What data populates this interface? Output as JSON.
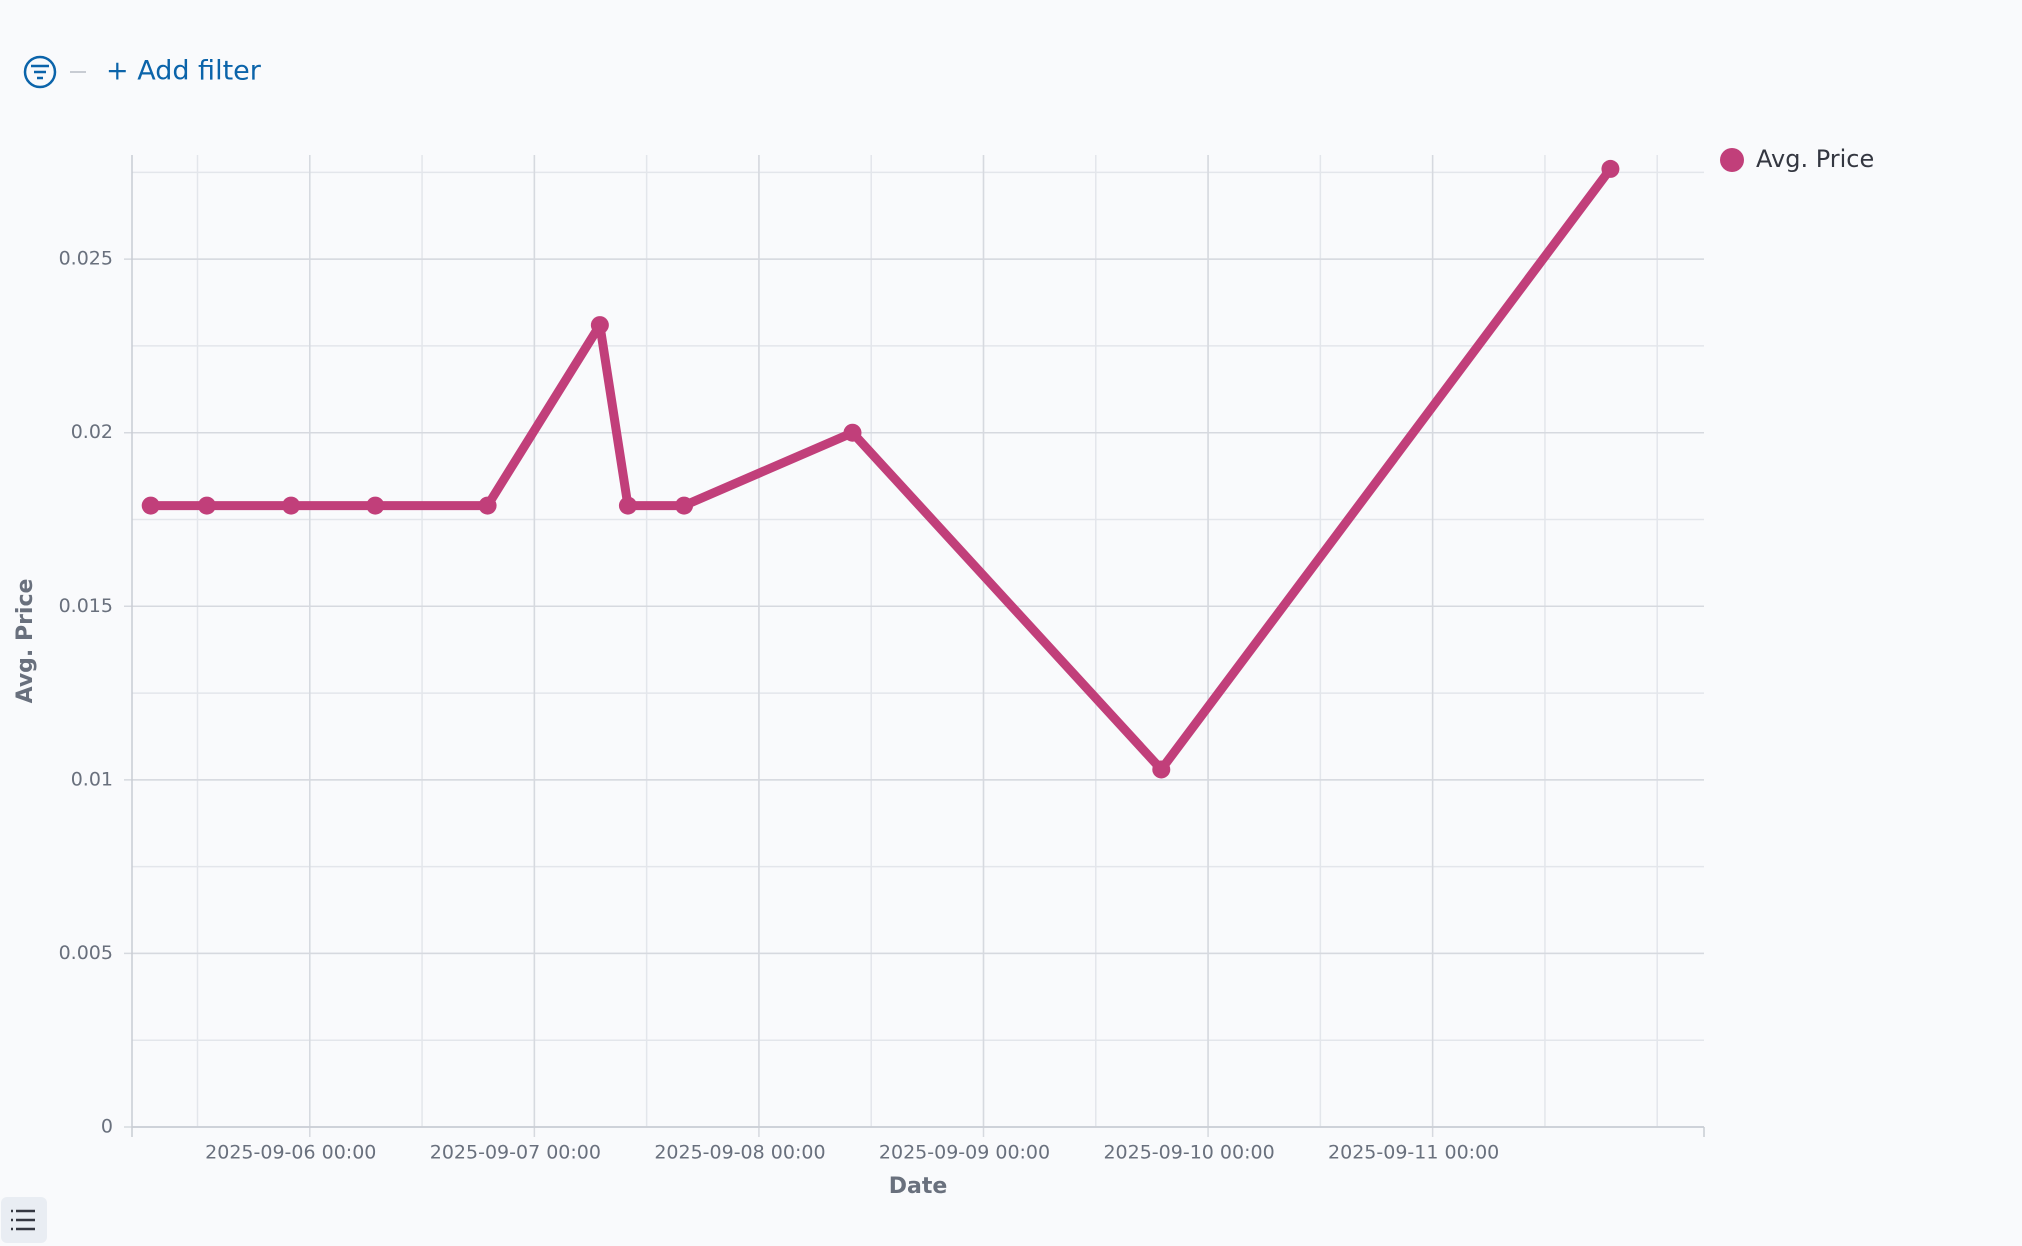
{
  "filter_bar": {
    "add_filter": "+ Add filter"
  },
  "chart_data": {
    "type": "line",
    "x_label": "Date",
    "y_label": "Avg. Price",
    "x": [
      "2025-09-05 07:00",
      "2025-09-05 13:00",
      "2025-09-05 22:00",
      "2025-09-06 07:00",
      "2025-09-06 19:00",
      "2025-09-07 07:00",
      "2025-09-07 10:00",
      "2025-09-07 16:00",
      "2025-09-08 10:00",
      "2025-09-09 19:00",
      "2025-09-11 19:00"
    ],
    "series": [
      {
        "name": "Avg. Price",
        "color": "#c13f7a",
        "values": [
          0.0179,
          0.0179,
          0.0179,
          0.0179,
          0.0179,
          0.0231,
          0.0179,
          0.0179,
          0.02,
          0.0103,
          0.0276
        ]
      }
    ],
    "xlim": [
      "2025-09-05 05:00",
      "2025-09-12 05:00"
    ],
    "xticks": [
      "2025-09-06 00:00",
      "2025-09-07 00:00",
      "2025-09-08 00:00",
      "2025-09-09 00:00",
      "2025-09-10 00:00",
      "2025-09-11 00:00"
    ],
    "ylim": [
      0,
      0.028
    ],
    "yticks": [
      0,
      0.005,
      0.01,
      0.015,
      0.02,
      0.025
    ],
    "grid": true,
    "legend": "right"
  }
}
